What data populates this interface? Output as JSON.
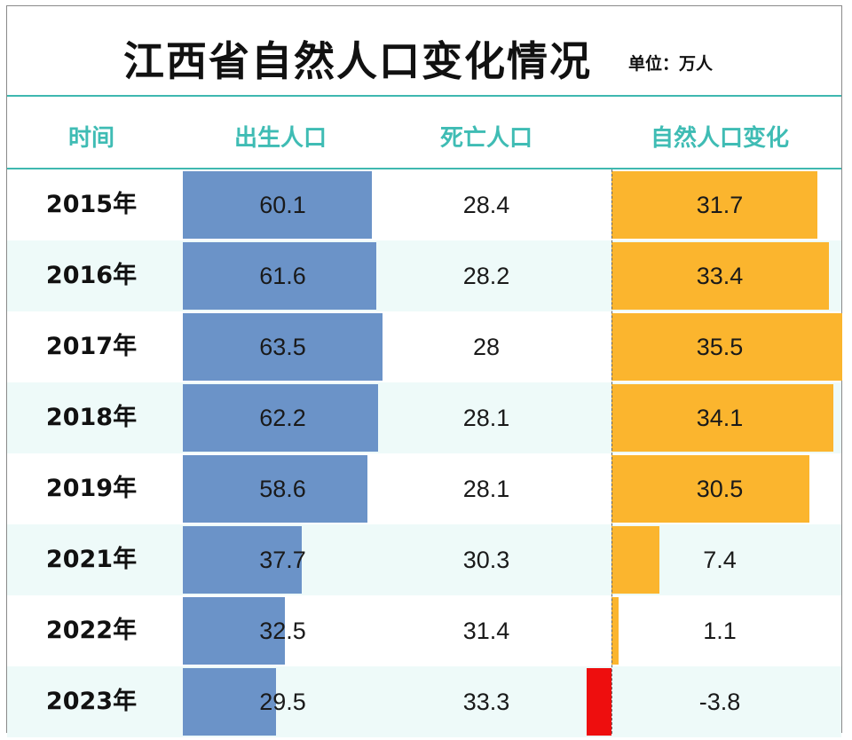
{
  "title": "江西省自然人口变化情况",
  "unit": "单位：万人",
  "headers": {
    "time": "时间",
    "births": "出生人口",
    "deaths": "死亡人口",
    "natural_change": "自然人口变化"
  },
  "colors": {
    "accent": "#3fbcb4",
    "births_bar": "#6b93c8",
    "natural_positive": "#fbb52e",
    "natural_negative": "#ee0e0e",
    "row_shade": "#eefaf9"
  },
  "chart_data": {
    "type": "table",
    "title": "江西省自然人口变化情况",
    "unit": "万人",
    "columns": [
      "时间",
      "出生人口",
      "死亡人口",
      "自然人口变化"
    ],
    "categories": [
      "2015年",
      "2016年",
      "2017年",
      "2018年",
      "2019年",
      "2021年",
      "2022年",
      "2023年"
    ],
    "series": [
      {
        "name": "出生人口",
        "values": [
          60.1,
          61.6,
          63.5,
          62.2,
          58.6,
          37.7,
          32.5,
          29.5
        ]
      },
      {
        "name": "死亡人口",
        "values": [
          28.4,
          28.2,
          28,
          28.1,
          28.1,
          30.3,
          31.4,
          33.3
        ]
      },
      {
        "name": "自然人口变化",
        "values": [
          31.7,
          33.4,
          35.5,
          34.1,
          30.5,
          7.4,
          1.1,
          -3.8
        ]
      }
    ],
    "display": {
      "births": [
        "60.1",
        "61.6",
        "63.5",
        "62.2",
        "58.6",
        "37.7",
        "32.5",
        "29.5"
      ],
      "deaths": [
        "28.4",
        "28.2",
        "28",
        "28.1",
        "28.1",
        "30.3",
        "31.4",
        "33.3"
      ],
      "natural_change": [
        "31.7",
        "33.4",
        "35.5",
        "34.1",
        "30.5",
        "7.4",
        "1.1",
        "-3.8"
      ]
    }
  }
}
